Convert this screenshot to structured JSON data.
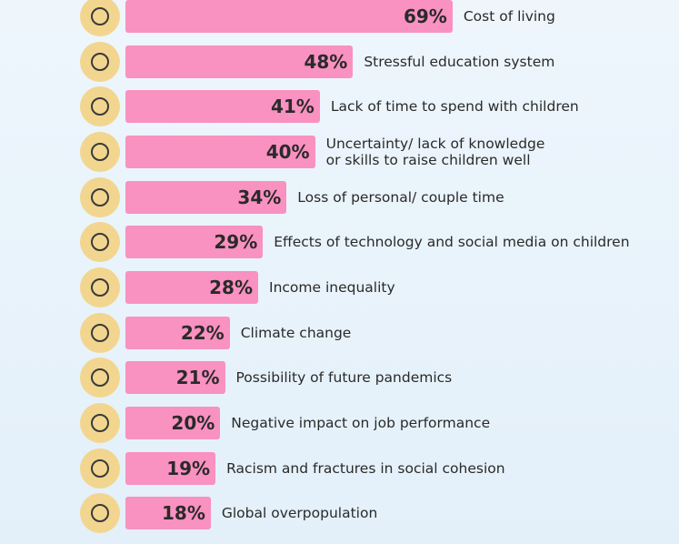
{
  "chart_data": {
    "type": "bar",
    "orientation": "horizontal",
    "color": "#f991c1",
    "categories": [
      "Cost of living",
      "Stressful education system",
      "Lack of time to spend with children",
      "Uncertainty/ lack of knowledge\nor skills to raise children well",
      "Loss of personal/ couple time",
      "Effects of technology and social media on children",
      "Income inequality",
      "Climate change",
      "Possibility of future pandemics",
      "Negative impact on job performance",
      "Racism and fractures in social cohesion",
      "Global overpopulation"
    ],
    "values": [
      69,
      48,
      41,
      40,
      34,
      29,
      28,
      22,
      21,
      20,
      19,
      18
    ],
    "value_labels": [
      "69%",
      "48%",
      "41%",
      "40%",
      "34%",
      "29%",
      "28%",
      "22%",
      "21%",
      "20%",
      "19%",
      "18%"
    ]
  }
}
